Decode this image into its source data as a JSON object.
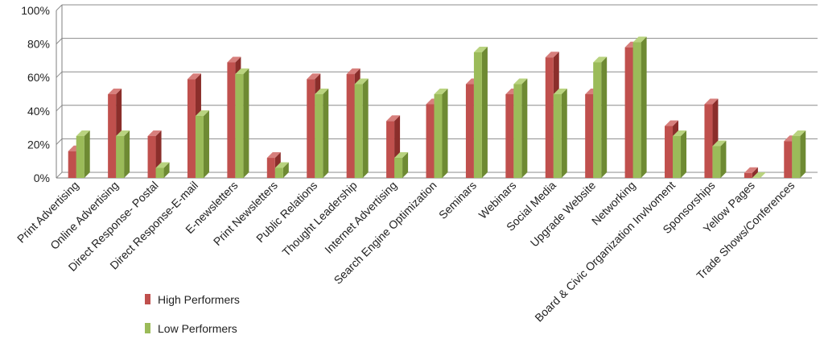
{
  "colors": {
    "high_front": "#C0504D",
    "high_side": "#8B2E2B",
    "high_top": "#D77F7C",
    "low_front": "#9BBB59",
    "low_side": "#6E8A33",
    "low_top": "#B9D37F",
    "grid": "#8c8c8c",
    "axis": "#7f7f7f"
  },
  "chart_data": {
    "type": "bar",
    "title": "",
    "xlabel": "",
    "ylabel": "",
    "ylim": [
      0,
      100
    ],
    "y_ticks": [
      "0%",
      "20%",
      "40%",
      "60%",
      "80%",
      "100%"
    ],
    "y_tick_values": [
      0,
      20,
      40,
      60,
      80,
      100
    ],
    "grid": true,
    "legend_position": "bottom-left",
    "categories": [
      "Print Advertising",
      "Online Advertising",
      "Direct Response- Postal",
      "Direct Response-E-mail",
      "E-newsletters",
      "Print Newsletters",
      "Public Relations",
      "Thought Leadership",
      "Internet Advertising",
      "Search Engine Optimization",
      "Seminars",
      "Webinars",
      "Social Media",
      "Upgrade Website",
      "Networking",
      "Board & Civic Organization Invlvoment",
      "Sponsorships",
      "Yellow Pages",
      "Trade Shows/Conferences"
    ],
    "series": [
      {
        "name": "High Performers",
        "values": [
          16,
          50,
          25,
          59,
          69,
          12,
          59,
          62,
          34,
          44,
          56,
          50,
          72,
          50,
          78,
          31,
          44,
          3,
          22
        ]
      },
      {
        "name": "Low Performers",
        "values": [
          25,
          25,
          6,
          37,
          62,
          6,
          50,
          56,
          12,
          50,
          75,
          56,
          50,
          69,
          81,
          25,
          19,
          0,
          25
        ]
      }
    ]
  }
}
